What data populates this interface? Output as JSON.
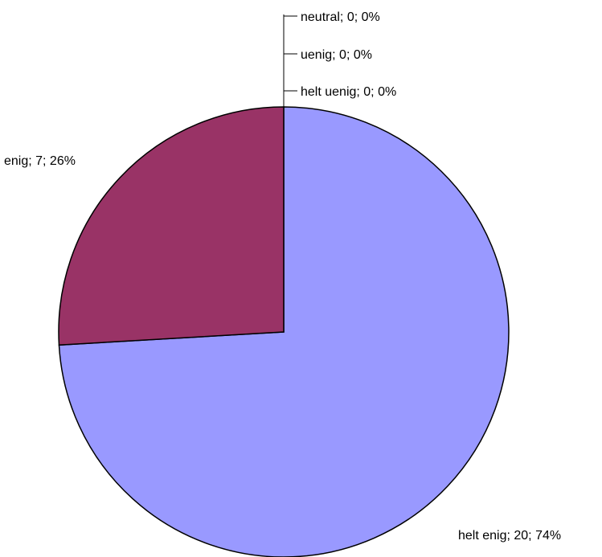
{
  "chart_data": {
    "type": "pie",
    "slices": [
      {
        "category": "helt enig",
        "value": 20,
        "percent": "74%",
        "label": "helt enig; 20; 74%",
        "color": "#9999FF"
      },
      {
        "category": "enig",
        "value": 7,
        "percent": "26%",
        "label": "enig; 7; 26%",
        "color": "#993366"
      },
      {
        "category": "neutral",
        "value": 0,
        "percent": "0%",
        "label": "neutral; 0; 0%",
        "color": "#FFFFCC"
      },
      {
        "category": "uenig",
        "value": 0,
        "percent": "0%",
        "label": "uenig; 0; 0%",
        "color": "#CCFFFF"
      },
      {
        "category": "helt uenig",
        "value": 0,
        "percent": "0%",
        "label": "helt uenig; 0; 0%",
        "color": "#660066"
      }
    ],
    "start_angle_deg": 0,
    "direction": "clockwise",
    "legend": "none"
  }
}
